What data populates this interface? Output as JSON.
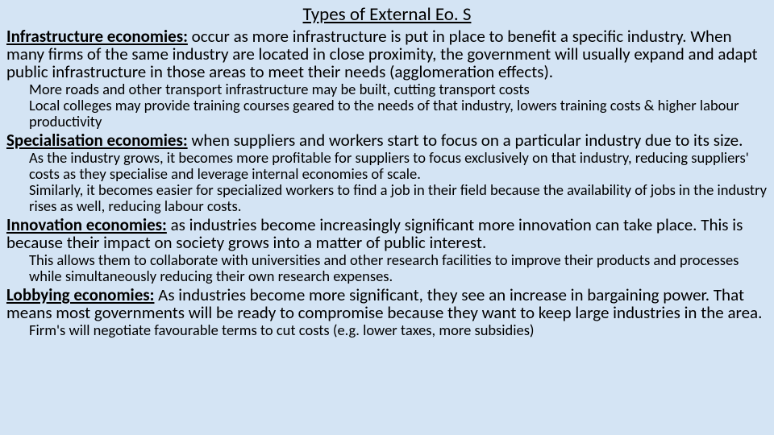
{
  "title": "Types of External Eo. S",
  "sections": [
    {
      "label": "Infrastructure economies:",
      "body": " occur as more infrastructure is put in place to benefit a specific industry. When many firms of the same industry are located in close proximity, the government will usually expand and adapt public infrastructure in those areas to meet their needs (agglomeration effects).",
      "subs": [
        "More roads and other transport infrastructure may be built, cutting transport costs",
        "Local colleges may provide training courses geared to the needs of that industry, lowers training costs & higher labour productivity"
      ]
    },
    {
      "label": "Specialisation economies:",
      "body": " when suppliers and workers start to focus on a particular industry due to its size.",
      "subs": [
        "As the industry grows, it becomes more profitable for suppliers to focus exclusively on that industry, reducing suppliers' costs as they specialise and leverage internal economies of scale.",
        "Similarly, it becomes easier for specialized workers to find a job in their field because the availability of jobs in the industry rises as well, reducing labour costs."
      ]
    },
    {
      "label": "Innovation economies:",
      "body": " as industries become increasingly significant more innovation can take place. This is because their impact on society grows into a matter of public interest.",
      "subs": [
        "This allows them to collaborate with universities and other research facilities to improve their products and processes while simultaneously reducing their own research expenses."
      ]
    },
    {
      "label": "Lobbying economies:",
      "body": " As industries become more significant, they see an increase in bargaining power. That means most governments will be ready to compromise because they want to keep large industries in the area.",
      "subs": [
        "Firm's will negotiate favourable terms to cut costs (e.g. lower taxes, more subsidies)"
      ]
    }
  ],
  "colors": {
    "background": "#d4e4f4",
    "text": "#000000"
  },
  "fonts": {
    "title_size": 23,
    "body_size": 21,
    "sub_size": 18.5
  }
}
